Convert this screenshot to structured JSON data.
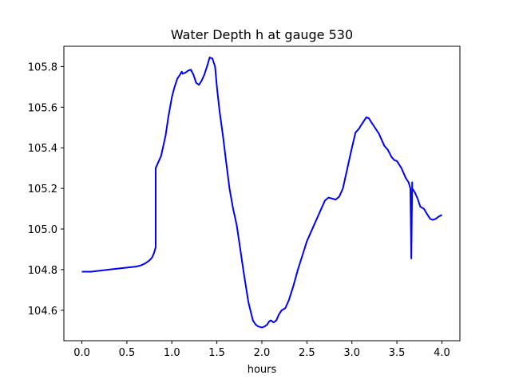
{
  "chart_data": {
    "type": "line",
    "title": "Water Depth h at gauge 530",
    "xlabel": "hours",
    "ylabel": "",
    "xlim": [
      -0.2,
      4.2
    ],
    "ylim": [
      104.45,
      105.9
    ],
    "xticks": [
      "0.0",
      "0.5",
      "1.0",
      "1.5",
      "2.0",
      "2.5",
      "3.0",
      "3.5",
      "4.0"
    ],
    "yticks": [
      "104.6",
      "104.8",
      "105.0",
      "105.2",
      "105.4",
      "105.6",
      "105.8"
    ],
    "grid": false,
    "legend": "none",
    "series": [
      {
        "color": "#0000ff",
        "x": [
          0.0,
          0.1,
          0.2,
          0.3,
          0.4,
          0.5,
          0.6,
          0.65,
          0.7,
          0.75,
          0.78,
          0.8,
          0.82,
          0.82,
          0.85,
          0.88,
          0.9,
          0.93,
          0.96,
          1.0,
          1.03,
          1.06,
          1.09,
          1.11,
          1.12,
          1.15,
          1.18,
          1.21,
          1.24,
          1.27,
          1.3,
          1.33,
          1.36,
          1.39,
          1.42,
          1.45,
          1.48,
          1.5,
          1.53,
          1.57,
          1.6,
          1.64,
          1.68,
          1.72,
          1.76,
          1.8,
          1.85,
          1.9,
          1.93,
          1.96,
          2.0,
          2.03,
          2.06,
          2.08,
          2.1,
          2.13,
          2.16,
          2.19,
          2.22,
          2.26,
          2.3,
          2.35,
          2.4,
          2.45,
          2.5,
          2.55,
          2.58,
          2.62,
          2.66,
          2.7,
          2.74,
          2.78,
          2.82,
          2.86,
          2.9,
          2.93,
          2.96,
          3.0,
          3.04,
          3.08,
          3.1,
          3.13,
          3.16,
          3.19,
          3.21,
          3.24,
          3.27,
          3.3,
          3.33,
          3.36,
          3.4,
          3.44,
          3.47,
          3.5,
          3.55,
          3.6,
          3.63,
          3.65,
          3.66,
          3.66,
          3.67,
          3.67,
          3.67,
          3.7,
          3.73,
          3.76,
          3.8,
          3.84,
          3.87,
          3.9,
          3.93,
          3.96,
          4.0
        ],
        "values": [
          104.79,
          104.79,
          104.795,
          104.8,
          104.805,
          104.81,
          104.815,
          104.82,
          104.83,
          104.845,
          104.86,
          104.88,
          104.91,
          105.3,
          105.33,
          105.36,
          105.4,
          105.46,
          105.55,
          105.65,
          105.7,
          105.74,
          105.76,
          105.775,
          105.765,
          105.77,
          105.78,
          105.785,
          105.76,
          105.72,
          105.71,
          105.73,
          105.76,
          105.8,
          105.845,
          105.84,
          105.8,
          105.7,
          105.58,
          105.45,
          105.34,
          105.2,
          105.1,
          105.02,
          104.9,
          104.78,
          104.64,
          104.55,
          104.53,
          104.52,
          104.515,
          104.52,
          104.53,
          104.545,
          104.55,
          104.54,
          104.55,
          104.58,
          104.6,
          104.61,
          104.65,
          104.72,
          104.8,
          104.87,
          104.94,
          104.99,
          105.02,
          105.06,
          105.1,
          105.14,
          105.155,
          105.15,
          105.145,
          105.16,
          105.2,
          105.26,
          105.32,
          105.4,
          105.475,
          105.495,
          105.51,
          105.53,
          105.55,
          105.545,
          105.53,
          105.51,
          105.49,
          105.47,
          105.44,
          105.41,
          105.39,
          105.355,
          105.34,
          105.335,
          105.3,
          105.25,
          105.23,
          105.2,
          104.86,
          104.855,
          105.23,
          105.22,
          105.2,
          105.18,
          105.15,
          105.11,
          105.1,
          105.07,
          105.05,
          105.045,
          105.05,
          105.06,
          105.07
        ]
      }
    ]
  }
}
